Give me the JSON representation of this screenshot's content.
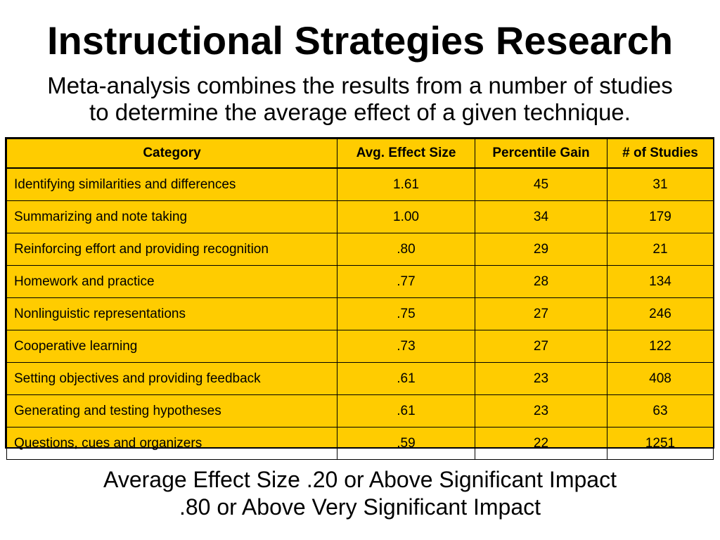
{
  "slide": {
    "title": "Instructional Strategies Research",
    "subtitle_lines": [
      "Meta-analysis combines the results from a number of studies",
      "to determine the average effect of a given technique."
    ]
  },
  "table": {
    "headers": [
      "Category",
      "Avg. Effect Size",
      "Percentile Gain",
      "# of Studies"
    ],
    "rows": [
      {
        "category": "Identifying similarities and differences",
        "effect_size": "1.61",
        "percentile_gain": "45",
        "studies": "31"
      },
      {
        "category": "Summarizing and note taking",
        "effect_size": "1.00",
        "percentile_gain": "34",
        "studies": "179"
      },
      {
        "category": "Reinforcing effort and providing recognition",
        "effect_size": ".80",
        "percentile_gain": "29",
        "studies": "21"
      },
      {
        "category": "Homework and practice",
        "effect_size": ".77",
        "percentile_gain": "28",
        "studies": "134"
      },
      {
        "category": "Nonlinguistic representations",
        "effect_size": ".75",
        "percentile_gain": "27",
        "studies": "246"
      },
      {
        "category": "Cooperative learning",
        "effect_size": ".73",
        "percentile_gain": "27",
        "studies": "122"
      },
      {
        "category": "Setting objectives and providing feedback",
        "effect_size": ".61",
        "percentile_gain": "23",
        "studies": "408"
      },
      {
        "category": "Generating and testing hypotheses",
        "effect_size": ".61",
        "percentile_gain": "23",
        "studies": "63"
      },
      {
        "category": "Questions, cues and organizers",
        "effect_size": ".59",
        "percentile_gain": "22",
        "studies": "1251"
      }
    ]
  },
  "footer": {
    "lines": [
      "Average Effect Size .20 or Above Significant Impact",
      ".80 or Above Very Significant Impact"
    ]
  },
  "colors": {
    "table_fill": "#ffcc00",
    "border": "#000000",
    "text": "#000000",
    "background": "#ffffff"
  }
}
